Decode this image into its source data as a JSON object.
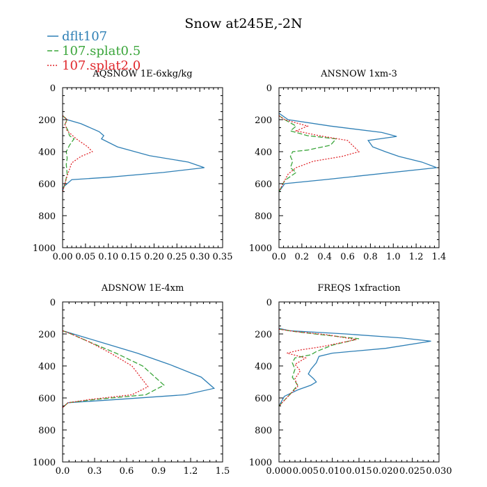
{
  "figure": {
    "title": "Snow at245E,-2N",
    "legend": [
      {
        "name": "dflt107",
        "color": "#2e7fb5",
        "dash": "solid"
      },
      {
        "name": "107.splat0.5",
        "color": "#3aa53a",
        "dash": "dashed"
      },
      {
        "name": "107.splat2.0",
        "color": "#e0262b",
        "dash": "dotted"
      }
    ]
  },
  "chart_data": [
    {
      "type": "line",
      "title": "AQSNOW  1E-6xkg/kg",
      "xlim": [
        0,
        0.35
      ],
      "xticks": [
        0,
        0.05,
        0.1,
        0.15,
        0.2,
        0.25,
        0.3,
        0.35
      ],
      "xtick_labels": [
        "0.00",
        "0.05",
        "0.10",
        "0.15",
        "0.20",
        "0.25",
        "0.30",
        "0.35"
      ],
      "ylim": [
        1000,
        0
      ],
      "yticks": [
        0,
        200,
        400,
        600,
        800,
        1000
      ],
      "ytick_labels": [
        "0",
        "200",
        "400",
        "600",
        "800",
        "1000"
      ],
      "series": [
        {
          "name": "dflt107",
          "x": [
            0,
            0.01,
            0.04,
            0.08,
            0.09,
            0.085,
            0.12,
            0.19,
            0.275,
            0.31,
            0.22,
            0.1,
            0.02,
            0.002,
            0
          ],
          "y": [
            175,
            200,
            225,
            275,
            300,
            320,
            370,
            425,
            465,
            500,
            530,
            560,
            575,
            620,
            650
          ]
        },
        {
          "name": "107.splat0.5",
          "x": [
            0,
            0.01,
            0.005,
            0.012,
            0.015,
            0.025,
            0.015,
            0.008,
            0.01,
            0.008,
            0.01,
            0.005,
            0
          ],
          "y": [
            175,
            200,
            230,
            270,
            300,
            320,
            360,
            400,
            440,
            480,
            540,
            600,
            650
          ]
        },
        {
          "name": "107.splat2.0",
          "x": [
            0,
            0.01,
            0.005,
            0.01,
            0.03,
            0.055,
            0.065,
            0.04,
            0.02,
            0.015,
            0.01,
            0.005,
            0
          ],
          "y": [
            175,
            200,
            230,
            270,
            320,
            370,
            400,
            430,
            470,
            510,
            550,
            600,
            650
          ]
        }
      ]
    },
    {
      "type": "line",
      "title": "ANSNOW  1xm-3",
      "xlim": [
        0,
        1.4
      ],
      "xticks": [
        0,
        0.2,
        0.4,
        0.6,
        0.8,
        1.0,
        1.2,
        1.4
      ],
      "xtick_labels": [
        "0.0",
        "0.2",
        "0.4",
        "0.6",
        "0.8",
        "1.0",
        "1.2",
        "1.4"
      ],
      "ylim": [
        1000,
        0
      ],
      "yticks": [
        0,
        200,
        400,
        600,
        800,
        1000
      ],
      "ytick_labels": [
        "0",
        "200",
        "400",
        "600",
        "800",
        "1000"
      ],
      "series": [
        {
          "name": "dflt107",
          "x": [
            0,
            0.08,
            0.45,
            0.9,
            1.03,
            0.78,
            0.82,
            0.93,
            1.05,
            1.25,
            1.38,
            0.4,
            0.05,
            0
          ],
          "y": [
            160,
            200,
            240,
            280,
            305,
            330,
            370,
            400,
            430,
            465,
            500,
            575,
            600,
            650
          ]
        },
        {
          "name": "107.splat0.5",
          "x": [
            0,
            0.05,
            0.15,
            0.1,
            0.25,
            0.5,
            0.45,
            0.25,
            0.12,
            0.1,
            0.12,
            0.1,
            0.15,
            0.05,
            0
          ],
          "y": [
            175,
            200,
            240,
            270,
            300,
            320,
            360,
            390,
            400,
            430,
            460,
            500,
            530,
            580,
            650
          ]
        },
        {
          "name": "107.splat2.0",
          "x": [
            0,
            0.05,
            0.25,
            0.15,
            0.35,
            0.6,
            0.7,
            0.55,
            0.3,
            0.15,
            0.08,
            0.05,
            0
          ],
          "y": [
            175,
            200,
            240,
            270,
            300,
            330,
            400,
            430,
            460,
            500,
            540,
            580,
            650
          ]
        }
      ]
    },
    {
      "type": "line",
      "title": "ADSNOW  1E-4xm",
      "xlim": [
        0,
        1.5
      ],
      "xticks": [
        0,
        0.3,
        0.6,
        0.9,
        1.2,
        1.5
      ],
      "xtick_labels": [
        "0.0",
        "0.3",
        "0.6",
        "0.9",
        "1.2",
        "1.5"
      ],
      "ylim": [
        1000,
        0
      ],
      "yticks": [
        0,
        200,
        400,
        600,
        800,
        1000
      ],
      "ytick_labels": [
        "0",
        "200",
        "400",
        "600",
        "800",
        "1000"
      ],
      "series": [
        {
          "name": "dflt107",
          "x": [
            0,
            0.1,
            0.35,
            0.7,
            1.0,
            1.3,
            1.42,
            1.15,
            0.5,
            0.05,
            0
          ],
          "y": [
            180,
            200,
            250,
            320,
            390,
            470,
            540,
            580,
            610,
            630,
            660
          ]
        },
        {
          "name": "107.splat0.5",
          "x": [
            0,
            0.08,
            0.25,
            0.5,
            0.75,
            0.95,
            0.78,
            0.3,
            0.05,
            0
          ],
          "y": [
            180,
            200,
            250,
            320,
            400,
            520,
            580,
            610,
            630,
            660
          ]
        },
        {
          "name": "107.splat2.0",
          "x": [
            0,
            0.08,
            0.25,
            0.45,
            0.65,
            0.8,
            0.65,
            0.25,
            0.05,
            0
          ],
          "y": [
            180,
            200,
            250,
            320,
            400,
            530,
            580,
            610,
            630,
            660
          ]
        }
      ]
    },
    {
      "type": "line",
      "title": "FREQS  1xfraction",
      "xlim": [
        0,
        0.03
      ],
      "xticks": [
        0,
        0.005,
        0.01,
        0.015,
        0.02,
        0.025,
        0.03
      ],
      "xtick_labels": [
        "0.000",
        "0.005",
        "0.010",
        "0.015",
        "0.020",
        "0.025",
        "0.030"
      ],
      "ylim": [
        1000,
        0
      ],
      "yticks": [
        0,
        200,
        400,
        600,
        800,
        1000
      ],
      "ytick_labels": [
        "0",
        "200",
        "400",
        "600",
        "800",
        "1000"
      ],
      "series": [
        {
          "name": "dflt107",
          "x": [
            0,
            0.002,
            0.0125,
            0.023,
            0.0285,
            0.02,
            0.01,
            0.0075,
            0.007,
            0.006,
            0.0055,
            0.0065,
            0.007,
            0.006,
            0.0035,
            0.001,
            0
          ],
          "y": [
            165,
            180,
            200,
            225,
            245,
            290,
            320,
            340,
            380,
            420,
            450,
            480,
            500,
            520,
            550,
            590,
            650
          ]
        },
        {
          "name": "107.splat0.5",
          "x": [
            0,
            0.003,
            0.008,
            0.015,
            0.01,
            0.007,
            0.006,
            0.003,
            0.0025,
            0.003,
            0.0025,
            0.0035,
            0.002,
            0
          ],
          "y": [
            170,
            185,
            205,
            230,
            270,
            310,
            330,
            350,
            380,
            420,
            470,
            520,
            580,
            650
          ]
        },
        {
          "name": "107.splat2.0",
          "x": [
            0,
            0.003,
            0.009,
            0.0145,
            0.008,
            0.004,
            0.0015,
            0.005,
            0.003,
            0.004,
            0.003,
            0.0035,
            0.002,
            0
          ],
          "y": [
            170,
            185,
            205,
            235,
            280,
            300,
            320,
            350,
            390,
            430,
            480,
            530,
            580,
            650
          ]
        }
      ]
    }
  ]
}
